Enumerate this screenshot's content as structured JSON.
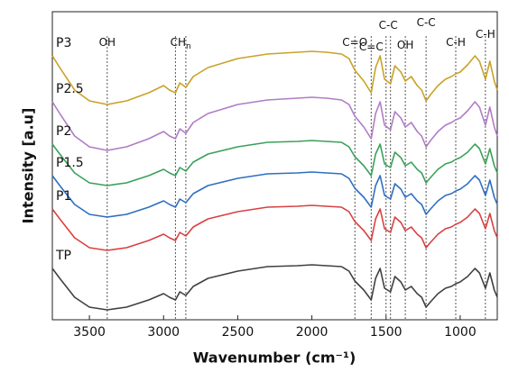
{
  "chart_data": {
    "type": "line",
    "xlabel": "Wavenumber (cm⁻¹)",
    "ylabel": "Intensity [a.u]",
    "xlim": [
      3750,
      750
    ],
    "ylim": [
      0,
      342
    ],
    "xticks": [
      3500,
      3000,
      2500,
      2000,
      1500,
      1000
    ],
    "x": [
      3750,
      3700,
      3600,
      3500,
      3380,
      3250,
      3100,
      3000,
      2960,
      2920,
      2890,
      2850,
      2800,
      2700,
      2500,
      2300,
      2100,
      2000,
      1900,
      1800,
      1750,
      1710,
      1650,
      1600,
      1570,
      1540,
      1510,
      1470,
      1440,
      1400,
      1370,
      1330,
      1290,
      1260,
      1230,
      1200,
      1150,
      1100,
      1060,
      1030,
      1000,
      950,
      900,
      870,
      830,
      800,
      770,
      750
    ],
    "series": [
      {
        "name": "P3",
        "color": "#c9a227",
        "values": [
          293,
          280,
          255,
          243,
          239,
          243,
          252,
          260,
          255,
          252,
          263,
          258,
          270,
          280,
          290,
          295,
          297,
          298,
          297,
          295,
          290,
          277,
          265,
          252,
          280,
          293,
          267,
          262,
          282,
          275,
          265,
          270,
          260,
          255,
          243,
          250,
          260,
          267,
          270,
          273,
          275,
          283,
          293,
          287,
          267,
          287,
          265,
          255
        ]
      },
      {
        "name": "P2.5",
        "color": "#b07cc6",
        "values": [
          242,
          229,
          204,
          192,
          188,
          192,
          201,
          209,
          204,
          201,
          212,
          207,
          219,
          229,
          239,
          244,
          246,
          247,
          246,
          244,
          239,
          226,
          214,
          201,
          229,
          242,
          216,
          211,
          231,
          224,
          214,
          219,
          209,
          204,
          192,
          199,
          209,
          216,
          219,
          222,
          224,
          232,
          242,
          236,
          216,
          236,
          214,
          204
        ]
      },
      {
        "name": "P2",
        "color": "#3aa05a",
        "values": [
          195,
          184,
          163,
          152,
          149,
          152,
          160,
          167,
          163,
          160,
          169,
          165,
          175,
          184,
          192,
          197,
          198,
          199,
          198,
          197,
          192,
          181,
          171,
          160,
          184,
          195,
          173,
          169,
          186,
          180,
          171,
          175,
          167,
          163,
          152,
          158,
          167,
          173,
          175,
          178,
          180,
          186,
          195,
          190,
          173,
          190,
          171,
          163
        ]
      },
      {
        "name": "P1.5",
        "color": "#2e6fbf",
        "values": [
          160,
          149,
          128,
          117,
          114,
          117,
          125,
          132,
          128,
          125,
          134,
          130,
          140,
          149,
          157,
          162,
          163,
          164,
          163,
          162,
          157,
          146,
          136,
          125,
          149,
          160,
          138,
          134,
          151,
          145,
          136,
          140,
          132,
          128,
          117,
          123,
          132,
          138,
          140,
          143,
          145,
          151,
          160,
          155,
          138,
          155,
          136,
          128
        ]
      },
      {
        "name": "P1",
        "color": "#d94040",
        "values": [
          123,
          112,
          91,
          80,
          77,
          80,
          88,
          95,
          91,
          88,
          97,
          93,
          103,
          112,
          120,
          125,
          126,
          127,
          126,
          125,
          120,
          109,
          99,
          88,
          112,
          123,
          101,
          97,
          114,
          108,
          99,
          103,
          95,
          91,
          80,
          86,
          95,
          101,
          103,
          106,
          108,
          114,
          123,
          118,
          101,
          118,
          99,
          91
        ]
      },
      {
        "name": "TP",
        "color": "#404040",
        "values": [
          57,
          46,
          25,
          14,
          11,
          14,
          22,
          29,
          25,
          22,
          31,
          27,
          37,
          46,
          54,
          59,
          60,
          61,
          60,
          59,
          54,
          43,
          33,
          22,
          46,
          57,
          35,
          31,
          48,
          42,
          33,
          37,
          29,
          25,
          14,
          20,
          29,
          35,
          37,
          40,
          42,
          48,
          57,
          52,
          35,
          52,
          33,
          25
        ]
      }
    ],
    "reference_lines": [
      3380,
      2920,
      2850,
      1710,
      1600,
      1500,
      1470,
      1370,
      1230,
      1030,
      830
    ],
    "annotations": [
      {
        "text": "OH",
        "x": 3380
      },
      {
        "text": "CH",
        "subscript": "n",
        "x": 2885
      },
      {
        "text": "C=O",
        "x": 1710
      },
      {
        "text": "C=C",
        "x": 1600
      },
      {
        "text": "C-C",
        "x": 1485
      },
      {
        "text": "OH",
        "x": 1370
      },
      {
        "text": "C-C",
        "x": 1230
      },
      {
        "text": "C-H",
        "x": 1030
      },
      {
        "text": "C-H",
        "x": 830
      }
    ]
  }
}
